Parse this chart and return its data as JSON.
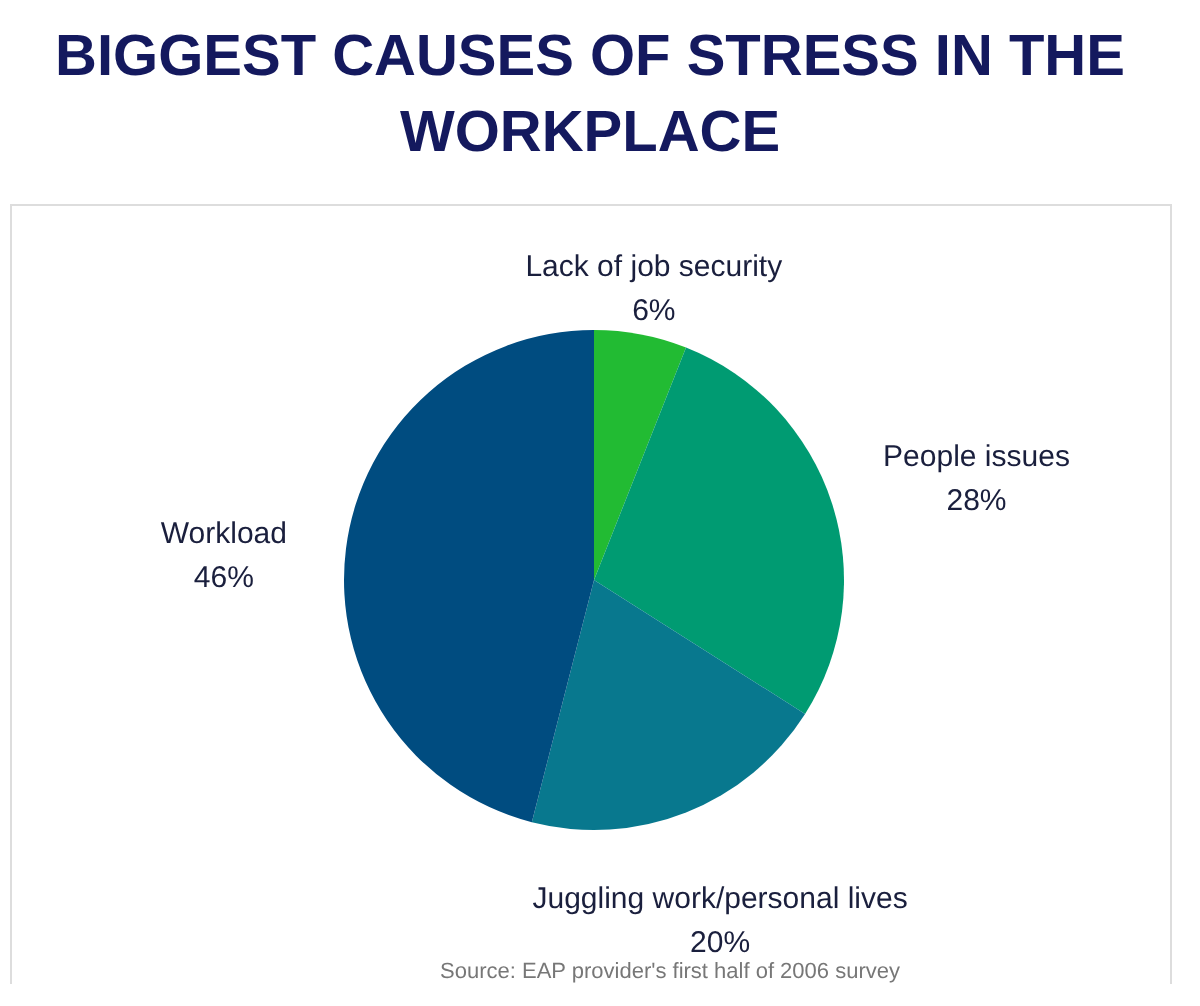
{
  "chart_data": {
    "type": "pie",
    "title": "BIGGEST CAUSES OF STRESS IN THE WORKPLACE",
    "categories": [
      "Lack of job security",
      "People issues",
      "Juggling work/personal lives",
      "Workload"
    ],
    "values": [
      6,
      28,
      20,
      46
    ],
    "value_labels": [
      "6%",
      "28%",
      "20%",
      "46%"
    ],
    "colors": [
      "#22bb33",
      "#009b72",
      "#08788e",
      "#004c80"
    ],
    "annotations": [
      "Source: EAP provider's first half of 2006 survey"
    ]
  }
}
